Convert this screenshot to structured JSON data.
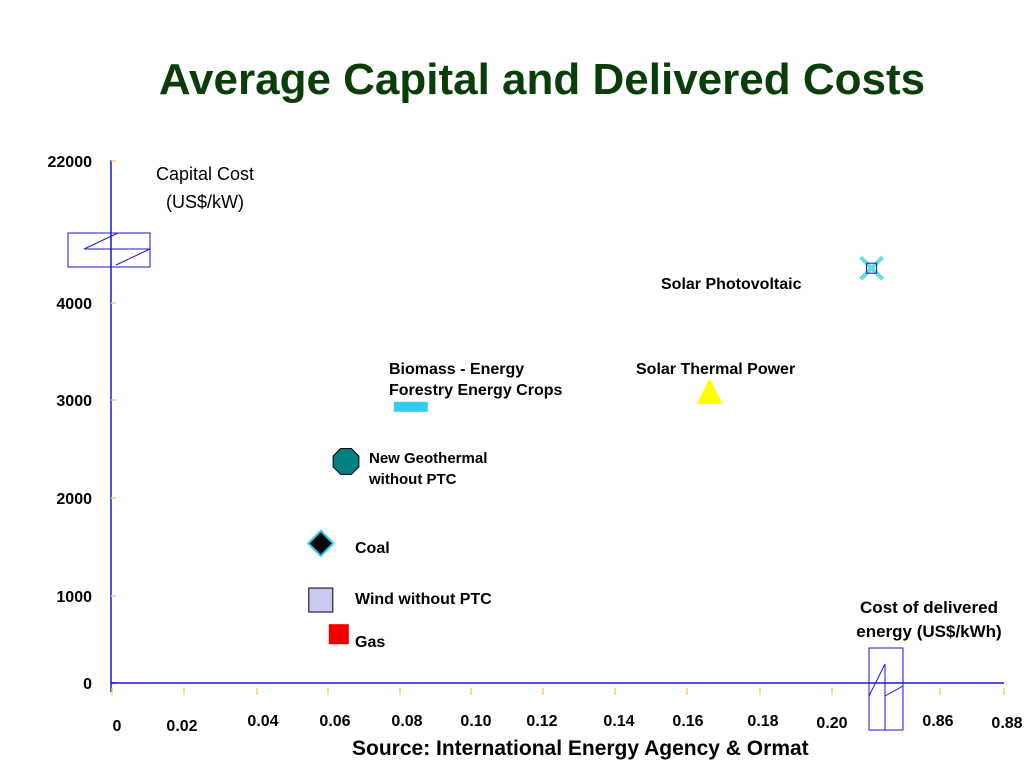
{
  "title": "Average Capital and Delivered Costs",
  "source": "Source: International Energy Agency & Ormat",
  "colors": {
    "title": "#0a3d0a",
    "axis": "#1a1acc",
    "tick": "#ffcc66"
  },
  "chart_data": {
    "type": "scatter",
    "title": "Average Capital and Delivered Costs",
    "ylabel": "Capital Cost (US$/kW)",
    "xlabel": "Cost of delivered energy (US$/kWh)",
    "ylabel_lines": [
      "Capital Cost",
      "(US$/kW)"
    ],
    "xlabel_lines": [
      "Cost of delivered",
      "energy (US$/kWh)"
    ],
    "y_ticks": [
      "0",
      "1000",
      "2000",
      "3000",
      "4000",
      "22000"
    ],
    "x_ticks": [
      "0",
      "0.02",
      "0.04",
      "0.06",
      "0.08",
      "0.10",
      "0.12",
      "0.14",
      "0.16",
      "0.18",
      "0.20",
      "0.86",
      "0.88"
    ],
    "x_breaks": "between 0.20 and 0.86",
    "y_breaks": "between 4000 and 22000",
    "grid": false,
    "points": [
      {
        "name": "Gas",
        "x": 0.063,
        "y": 500,
        "marker": "square",
        "color": "#ee0000"
      },
      {
        "name": "Wind without  PTC",
        "x": 0.058,
        "y": 850,
        "marker": "square",
        "color": "#c8c8f0"
      },
      {
        "name": "Coal",
        "x": 0.058,
        "y": 1430,
        "marker": "diamond",
        "color": "#000000"
      },
      {
        "name": "New Geothermal without PTC",
        "x": 0.065,
        "y": 2270,
        "marker": "octagon",
        "color": "#008080"
      },
      {
        "name": "Biomass - Energy Forestry  Energy Crops",
        "x": 0.083,
        "y": 2830,
        "marker": "bar",
        "color": "#33ccee"
      },
      {
        "name": "Solar Thermal Power",
        "x": 0.166,
        "y": 2990,
        "marker": "triangle",
        "color": "#ffff00"
      },
      {
        "name": "Solar Photovoltaic",
        "x": 0.211,
        "y": 4250,
        "marker": "x",
        "color": "#66dddd"
      }
    ]
  }
}
